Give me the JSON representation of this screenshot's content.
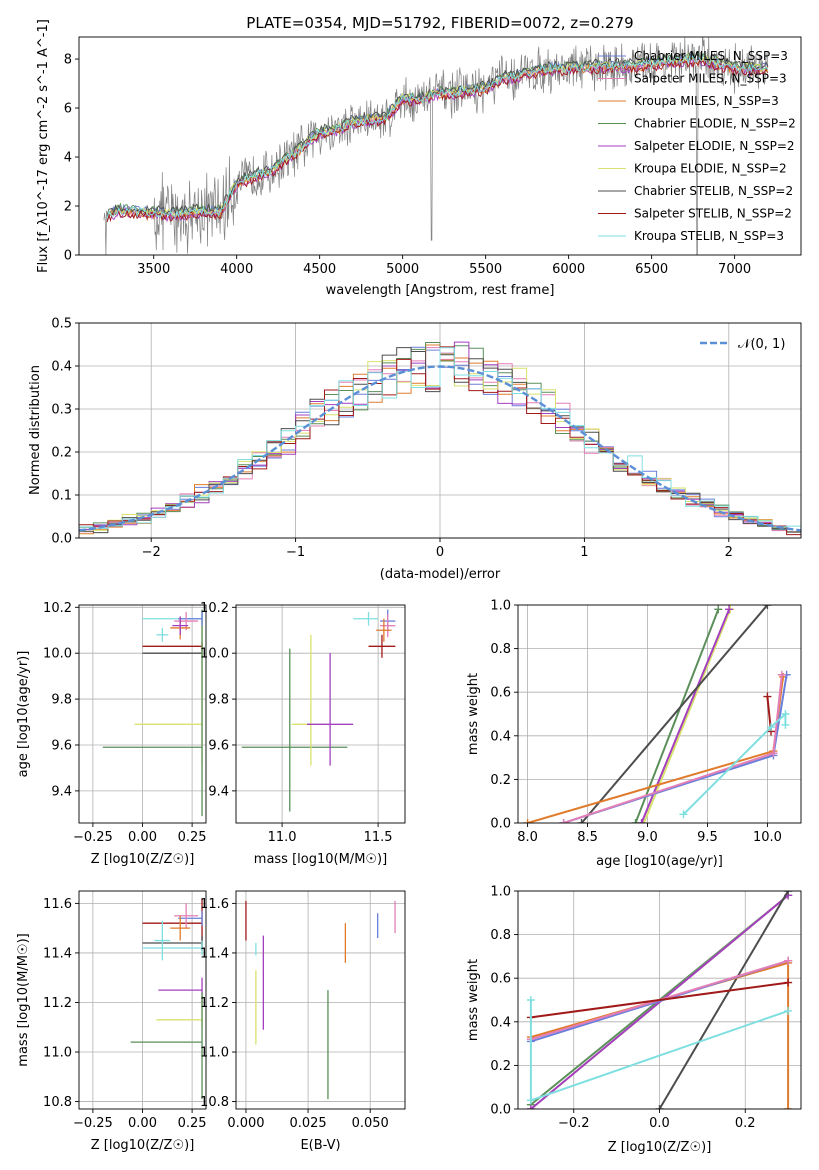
{
  "colors": {
    "blue": "#6a7fdb",
    "pink": "#e37fb7",
    "orange": "#e07b2c",
    "green": "#5a8f5a",
    "purple": "#a43fc0",
    "yellowgreen": "#d9e26d",
    "darkgray": "#4d4d4d",
    "darkred": "#a11a1a",
    "cyan": "#7fdfe0",
    "gray": "#808080",
    "dashblue": "#5b8fd6"
  },
  "chart_data": [
    {
      "id": "spectrum",
      "type": "line",
      "title": "PLATE=0354, MJD=51792, FIBERID=0072, z=0.279",
      "xlabel": "wavelength [Angstrom, rest frame]",
      "ylabel": "Flux [f_λ10^-17 erg cm^-2 s^-1 A^-1]",
      "xlim": [
        3050,
        7400
      ],
      "ylim": [
        0,
        8.9
      ],
      "xticks": [
        "3500",
        "4000",
        "4500",
        "5000",
        "5500",
        "6000",
        "6500",
        "7000"
      ],
      "yticks": [
        "0",
        "2",
        "4",
        "6",
        "8"
      ],
      "grid": false,
      "legend_position": "top-right",
      "continuum_x": [
        3200,
        3300,
        3400,
        3500,
        3600,
        3700,
        3800,
        3900,
        4000,
        4100,
        4200,
        4300,
        4400,
        4500,
        4600,
        4700,
        4800,
        4900,
        5000,
        5100,
        5200,
        5300,
        5400,
        5500,
        5600,
        5700,
        5800,
        5900,
        6000,
        6200,
        6400,
        6600,
        6800,
        7000,
        7200
      ],
      "continuum_y": [
        1.6,
        1.8,
        1.75,
        1.7,
        1.65,
        1.7,
        1.8,
        1.75,
        2.9,
        3.2,
        3.4,
        3.9,
        4.4,
        5.0,
        5.1,
        5.4,
        5.5,
        5.6,
        6.4,
        6.3,
        6.6,
        6.6,
        6.7,
        6.8,
        7.2,
        7.3,
        7.5,
        7.6,
        7.6,
        7.7,
        7.7,
        7.9,
        8.0,
        7.6,
        7.6
      ],
      "series": [
        {
          "name": "Chabrier MILES, N_SSP=3",
          "color": "blue"
        },
        {
          "name": "Salpeter MILES, N_SSP=3",
          "color": "pink"
        },
        {
          "name": "Kroupa MILES, N_SSP=3",
          "color": "orange"
        },
        {
          "name": "Chabrier ELODIE, N_SSP=2",
          "color": "green"
        },
        {
          "name": "Salpeter ELODIE, N_SSP=2",
          "color": "purple"
        },
        {
          "name": "Kroupa ELODIE, N_SSP=2",
          "color": "yellowgreen"
        },
        {
          "name": "Chabrier STELIB, N_SSP=2",
          "color": "darkgray"
        },
        {
          "name": "Salpeter STELIB, N_SSP=2",
          "color": "darkred"
        },
        {
          "name": "Kroupa STELIB, N_SSP=3",
          "color": "cyan"
        }
      ]
    },
    {
      "id": "residuals",
      "type": "line",
      "xlabel": "(data-model)/error",
      "ylabel": "Normed distribution",
      "xlim": [
        -2.5,
        2.5
      ],
      "ylim": [
        0,
        0.5
      ],
      "xticks": [
        "−2",
        "−1",
        "0",
        "1",
        "2"
      ],
      "yticks": [
        "0.0",
        "0.1",
        "0.2",
        "0.3",
        "0.4",
        "0.5"
      ],
      "grid": true,
      "legend_position": "top-right",
      "gaussian_label": "𝒩(0, 1)",
      "bin_width": 0.1,
      "histogram_series": [
        "blue",
        "pink",
        "orange",
        "green",
        "purple",
        "yellowgreen",
        "darkgray",
        "darkred",
        "cyan"
      ]
    },
    {
      "id": "age_vs_Z",
      "type": "scatter",
      "xlabel": "Z [log10(Z/Z☉)]",
      "ylabel": "age [log10(age/yr)]",
      "xlim": [
        -0.32,
        0.32
      ],
      "ylim": [
        9.26,
        10.21
      ],
      "xticks": [
        "−0.25",
        "0.00",
        "0.25"
      ],
      "yticks": [
        "9.4",
        "9.6",
        "9.8",
        "10.0",
        "10.2"
      ],
      "grid": true,
      "points": [
        {
          "color": "cyan",
          "x": 0.3,
          "y": 10.15,
          "xerr": [
            0.3,
            0.0
          ],
          "yerr": [
            0.02,
            0.02
          ]
        },
        {
          "color": "darkred",
          "x": 0.3,
          "y": 10.03,
          "xerr": [
            0.3,
            0.0
          ],
          "yerr": [
            0.02,
            0.02
          ]
        },
        {
          "color": "darkgray",
          "x": 0.3,
          "y": 10.0,
          "xerr": [
            0.3,
            0.0
          ],
          "yerr": [
            0.02,
            0.02
          ]
        },
        {
          "color": "yellowgreen",
          "x": 0.3,
          "y": 9.69,
          "xerr": [
            0.34,
            0.0
          ],
          "yerr": [
            0.18,
            0.46
          ]
        },
        {
          "color": "green",
          "x": 0.3,
          "y": 9.59,
          "xerr": [
            0.5,
            0.0
          ],
          "yerr": [
            0.3,
            0.6
          ]
        },
        {
          "color": "blue",
          "x": 0.3,
          "y": 10.15,
          "xerr": [
            0.12,
            0.0
          ],
          "yerr": [
            0.03,
            0.03
          ]
        },
        {
          "color": "pink",
          "x": 0.22,
          "y": 10.14,
          "xerr": [
            0.06,
            0.06
          ],
          "yerr": [
            0.04,
            0.04
          ]
        },
        {
          "color": "orange",
          "x": 0.19,
          "y": 10.11,
          "xerr": [
            0.05,
            0.05
          ],
          "yerr": [
            0.05,
            0.05
          ]
        },
        {
          "color": "purple",
          "x": 0.19,
          "y": 10.12,
          "xerr": [
            0.04,
            0.04
          ],
          "yerr": [
            0.04,
            0.04
          ]
        },
        {
          "color": "cyan",
          "x": 0.1,
          "y": 10.08,
          "xerr": [
            0.03,
            0.03
          ],
          "yerr": [
            0.03,
            0.03
          ]
        }
      ]
    },
    {
      "id": "age_vs_mass",
      "type": "scatter",
      "xlabel": "mass [log10(M/M☉)]",
      "xlim": [
        10.76,
        11.64
      ],
      "ylim": [
        9.26,
        10.21
      ],
      "xticks": [
        "11.0",
        "11.5"
      ],
      "yticks": [
        "9.4",
        "9.6",
        "9.8",
        "10.0",
        "10.2"
      ],
      "grid": true,
      "points": [
        {
          "color": "green",
          "x": 11.04,
          "y": 9.59,
          "xerr": [
            0.25,
            0.3
          ],
          "yerr": [
            0.28,
            0.43
          ]
        },
        {
          "color": "yellowgreen",
          "x": 11.15,
          "y": 9.69,
          "xerr": [
            0.1,
            0.1
          ],
          "yerr": [
            0.18,
            0.39
          ]
        },
        {
          "color": "purple",
          "x": 11.25,
          "y": 9.69,
          "xerr": [
            0.12,
            0.12
          ],
          "yerr": [
            0.18,
            0.31
          ]
        },
        {
          "color": "cyan",
          "x": 11.45,
          "y": 10.15,
          "xerr": [
            0.08,
            0.05
          ],
          "yerr": [
            0.03,
            0.03
          ]
        },
        {
          "color": "darkred",
          "x": 11.52,
          "y": 10.03,
          "xerr": [
            0.07,
            0.07
          ],
          "yerr": [
            0.05,
            0.05
          ]
        },
        {
          "color": "blue",
          "x": 11.55,
          "y": 10.14,
          "xerr": [
            0.04,
            0.04
          ],
          "yerr": [
            0.05,
            0.05
          ]
        },
        {
          "color": "pink",
          "x": 11.55,
          "y": 10.12,
          "xerr": [
            0.04,
            0.04
          ],
          "yerr": [
            0.05,
            0.05
          ]
        },
        {
          "color": "orange",
          "x": 11.53,
          "y": 10.1,
          "xerr": [
            0.04,
            0.04
          ],
          "yerr": [
            0.05,
            0.05
          ]
        }
      ]
    },
    {
      "id": "weight_vs_age",
      "type": "line",
      "xlabel": "age [log10(age/yr)]",
      "ylabel": "mass weight",
      "xlim": [
        7.92,
        10.28
      ],
      "ylim": [
        0,
        1
      ],
      "xticks": [
        "8.0",
        "8.5",
        "9.0",
        "9.5",
        "10.0"
      ],
      "yticks": [
        "0.0",
        "0.2",
        "0.4",
        "0.6",
        "0.8",
        "1.0"
      ],
      "grid": true,
      "series": [
        {
          "color": "green",
          "x": [
            8.9,
            9.59
          ],
          "y": [
            0.0,
            0.98
          ]
        },
        {
          "color": "yellowgreen",
          "x": [
            8.97,
            9.69
          ],
          "y": [
            0.0,
            0.98
          ]
        },
        {
          "color": "purple",
          "x": [
            8.95,
            9.68
          ],
          "y": [
            0.0,
            0.98
          ]
        },
        {
          "color": "darkgray",
          "x": [
            8.45,
            10.0
          ],
          "y": [
            0.0,
            1.0
          ]
        },
        {
          "color": "orange",
          "x": [
            8.0,
            10.05,
            10.13
          ],
          "y": [
            0.0,
            0.33,
            0.67
          ]
        },
        {
          "color": "blue",
          "x": [
            8.3,
            10.05,
            10.16
          ],
          "y": [
            0.0,
            0.31,
            0.68
          ]
        },
        {
          "color": "pink",
          "x": [
            8.3,
            10.05,
            10.12
          ],
          "y": [
            0.0,
            0.32,
            0.68
          ]
        },
        {
          "color": "darkred",
          "x": [
            10.0,
            10.03
          ],
          "y": [
            0.58,
            0.42
          ]
        },
        {
          "color": "cyan",
          "x": [
            9.3,
            10.03,
            10.15,
            10.15
          ],
          "y": [
            0.04,
            0.44,
            0.5,
            0.45
          ]
        }
      ]
    },
    {
      "id": "mass_vs_Z",
      "type": "scatter",
      "xlabel": "Z [log10(Z/Z☉)]",
      "ylabel": "mass [log10(M/M☉)]",
      "xlim": [
        -0.32,
        0.32
      ],
      "ylim": [
        10.77,
        11.65
      ],
      "xticks": [
        "−0.25",
        "0.00",
        "0.25"
      ],
      "yticks": [
        "10.8",
        "11.0",
        "11.2",
        "11.4",
        "11.6"
      ],
      "grid": true,
      "points": [
        {
          "color": "darkred",
          "x": 0.3,
          "y": 11.52,
          "xerr": [
            0.3,
            0.0
          ],
          "yerr": [
            0.1,
            0.1
          ]
        },
        {
          "color": "darkgray",
          "x": 0.3,
          "y": 11.44,
          "xerr": [
            0.3,
            0.0
          ],
          "yerr": [
            0.03,
            0.03
          ]
        },
        {
          "color": "cyan",
          "x": 0.3,
          "y": 11.42,
          "xerr": [
            0.3,
            0.0
          ],
          "yerr": [
            0.03,
            0.03
          ]
        },
        {
          "color": "purple",
          "x": 0.3,
          "y": 11.25,
          "xerr": [
            0.22,
            0.0
          ],
          "yerr": [
            0.05,
            0.05
          ]
        },
        {
          "color": "yellowgreen",
          "x": 0.3,
          "y": 11.13,
          "xerr": [
            0.23,
            0.0
          ],
          "yerr": [
            0.03,
            0.1
          ]
        },
        {
          "color": "green",
          "x": 0.3,
          "y": 11.04,
          "xerr": [
            0.36,
            0.0
          ],
          "yerr": [
            0.23,
            0.2
          ]
        },
        {
          "color": "blue",
          "x": 0.3,
          "y": 11.54,
          "xerr": [
            0.12,
            0.0
          ],
          "yerr": [
            0.03,
            0.03
          ]
        },
        {
          "color": "pink",
          "x": 0.22,
          "y": 11.55,
          "xerr": [
            0.06,
            0.06
          ],
          "yerr": [
            0.05,
            0.05
          ]
        },
        {
          "color": "orange",
          "x": 0.19,
          "y": 11.5,
          "xerr": [
            0.05,
            0.05
          ],
          "yerr": [
            0.05,
            0.05
          ]
        },
        {
          "color": "cyan",
          "x": 0.1,
          "y": 11.45,
          "xerr": [
            0.04,
            0.04
          ],
          "yerr": [
            0.08,
            0.08
          ]
        }
      ]
    },
    {
      "id": "mass_vs_ebv",
      "type": "scatter",
      "xlabel": "E(B-V)",
      "xlim": [
        -0.004,
        0.064
      ],
      "ylim": [
        10.77,
        11.65
      ],
      "xticks": [
        "0.000",
        "0.025",
        "0.050"
      ],
      "yticks": [
        "10.8",
        "11.0",
        "11.2",
        "11.4",
        "11.6"
      ],
      "grid": true,
      "points": [
        {
          "color": "darkred",
          "x": 0.0,
          "y": 11.52,
          "yerr": [
            0.07,
            0.09
          ]
        },
        {
          "color": "cyan",
          "x": 0.004,
          "y": 11.42,
          "yerr": [
            0.03,
            0.02
          ]
        },
        {
          "color": "yellowgreen",
          "x": 0.004,
          "y": 11.13,
          "yerr": [
            0.1,
            0.2
          ]
        },
        {
          "color": "purple",
          "x": 0.007,
          "y": 11.25,
          "yerr": [
            0.16,
            0.22
          ]
        },
        {
          "color": "green",
          "x": 0.033,
          "y": 11.04,
          "yerr": [
            0.23,
            0.21
          ]
        },
        {
          "color": "orange",
          "x": 0.04,
          "y": 11.44,
          "yerr": [
            0.08,
            0.08
          ]
        },
        {
          "color": "blue",
          "x": 0.053,
          "y": 11.54,
          "yerr": [
            0.08,
            0.02
          ]
        },
        {
          "color": "pink",
          "x": 0.06,
          "y": 11.54,
          "yerr": [
            0.06,
            0.07
          ]
        }
      ]
    },
    {
      "id": "weight_vs_Z",
      "type": "line",
      "xlabel": "Z [log10(Z/Z☉)]",
      "ylabel": "mass weight",
      "xlim": [
        -0.33,
        0.33
      ],
      "ylim": [
        0,
        1
      ],
      "xticks": [
        "−0.2",
        "0.0",
        "0.2"
      ],
      "yticks": [
        "0.0",
        "0.2",
        "0.4",
        "0.6",
        "0.8",
        "1.0"
      ],
      "grid": true,
      "series": [
        {
          "color": "green",
          "x": [
            -0.3,
            0.3
          ],
          "y": [
            0.02,
            0.98
          ]
        },
        {
          "color": "yellowgreen",
          "x": [
            -0.3,
            0.3
          ],
          "y": [
            0.0,
            0.98
          ]
        },
        {
          "color": "purple",
          "x": [
            -0.3,
            0.3
          ],
          "y": [
            0.0,
            0.98
          ]
        },
        {
          "color": "darkgray",
          "x": [
            0.0,
            0.3
          ],
          "y": [
            0.0,
            1.0
          ]
        },
        {
          "color": "orange",
          "x": [
            -0.3,
            0.3,
            0.3
          ],
          "y": [
            0.33,
            0.67,
            0.0
          ]
        },
        {
          "color": "blue",
          "x": [
            -0.3,
            0.3
          ],
          "y": [
            0.31,
            0.68
          ]
        },
        {
          "color": "pink",
          "x": [
            -0.3,
            0.3
          ],
          "y": [
            0.32,
            0.68
          ]
        },
        {
          "color": "darkred",
          "x": [
            -0.3,
            0.3
          ],
          "y": [
            0.42,
            0.58
          ]
        },
        {
          "color": "cyan",
          "x": [
            -0.3,
            -0.3,
            0.3
          ],
          "y": [
            0.5,
            0.04,
            0.45
          ]
        }
      ]
    }
  ]
}
